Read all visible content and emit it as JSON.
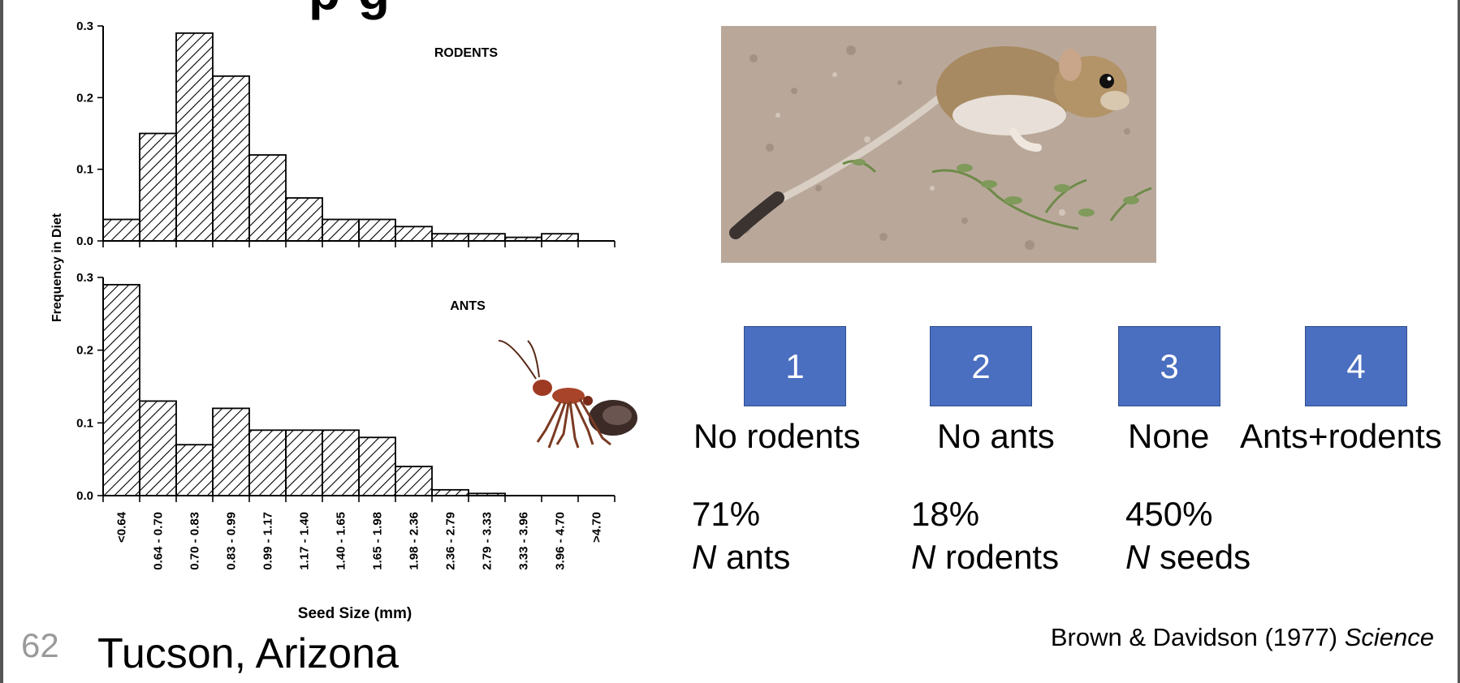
{
  "slide": {
    "title_fragment": "p          g",
    "number": "62",
    "location": "Tucson, Arizona",
    "citation_authors": "Brown & Davidson (1977)",
    "citation_journal": "Science"
  },
  "chart_data": [
    {
      "type": "bar",
      "title": "RODENTS",
      "ylabel": "Frequency in Diet",
      "xlabel": "",
      "yticks": [
        "0.0",
        "0.1",
        "0.2",
        "0.3"
      ],
      "ylim": [
        0,
        0.3
      ],
      "categories": [
        "<0.64",
        "0.64-0.70",
        "0.70-0.83",
        "0.83-0.99",
        "0.99-1.17",
        "1.17-1.40",
        "1.40-1.65",
        "1.65-1.98",
        "1.98-2.36",
        "2.36-2.79",
        "2.79-3.33",
        "3.33-3.96",
        "3.96-4.70",
        ">4.70"
      ],
      "values": [
        0.03,
        0.15,
        0.29,
        0.23,
        0.12,
        0.06,
        0.03,
        0.03,
        0.02,
        0.01,
        0.01,
        0.005,
        0.01,
        0.0
      ],
      "bar_style": "hatched"
    },
    {
      "type": "bar",
      "title": "ANTS",
      "ylabel": "Frequency in Diet",
      "xlabel": "Seed Size (mm)",
      "yticks": [
        "0.0",
        "0.1",
        "0.2",
        "0.3"
      ],
      "ylim": [
        0,
        0.3
      ],
      "categories": [
        "<0.64",
        "0.64-0.70",
        "0.70-0.83",
        "0.83-0.99",
        "0.99-1.17",
        "1.17-1.40",
        "1.40-1.65",
        "1.65-1.98",
        "1.98-2.36",
        "2.36-2.79",
        "2.79-3.33",
        "3.33-3.96",
        "3.96-4.70",
        ">4.70"
      ],
      "tick_labels": [
        "<0.64",
        "0.64 - 0.70",
        "0.70 - 0.83",
        "0.83 - 0.99",
        "0.99 - 1.17",
        "1.17 - 1.40",
        "1.40 - 1.65",
        "1.65 - 1.98",
        "1.98 - 2.36",
        "2.36 - 2.79",
        "2.79 - 3.33",
        "3.33 - 3.96",
        "3.96 - 4.70",
        ">4.70"
      ],
      "values": [
        0.29,
        0.13,
        0.07,
        0.12,
        0.09,
        0.09,
        0.09,
        0.08,
        0.04,
        0.008,
        0.003,
        0.0,
        0.0,
        0.0
      ],
      "bar_style": "hatched"
    }
  ],
  "treatments": [
    {
      "number": "1",
      "label": "No rodents",
      "result_value": "71%",
      "result_n": "N",
      "result_text": " ants"
    },
    {
      "number": "2",
      "label": "No ants",
      "result_value": "18%",
      "result_n": "N",
      "result_text": " rodents"
    },
    {
      "number": "3",
      "label": "None",
      "result_value": "450%",
      "result_n": "N",
      "result_text": " seeds"
    },
    {
      "number": "4",
      "label": "Ants+rodents",
      "result_value": "",
      "result_n": "",
      "result_text": ""
    }
  ],
  "images": {
    "rodent_photo": "kangaroo-rat-photo",
    "ant_photo": "red-ant-photo"
  },
  "colors": {
    "box_fill": "#4a6ec0",
    "box_border": "#2e4e8c",
    "slide_number": "#9a9a9a"
  }
}
